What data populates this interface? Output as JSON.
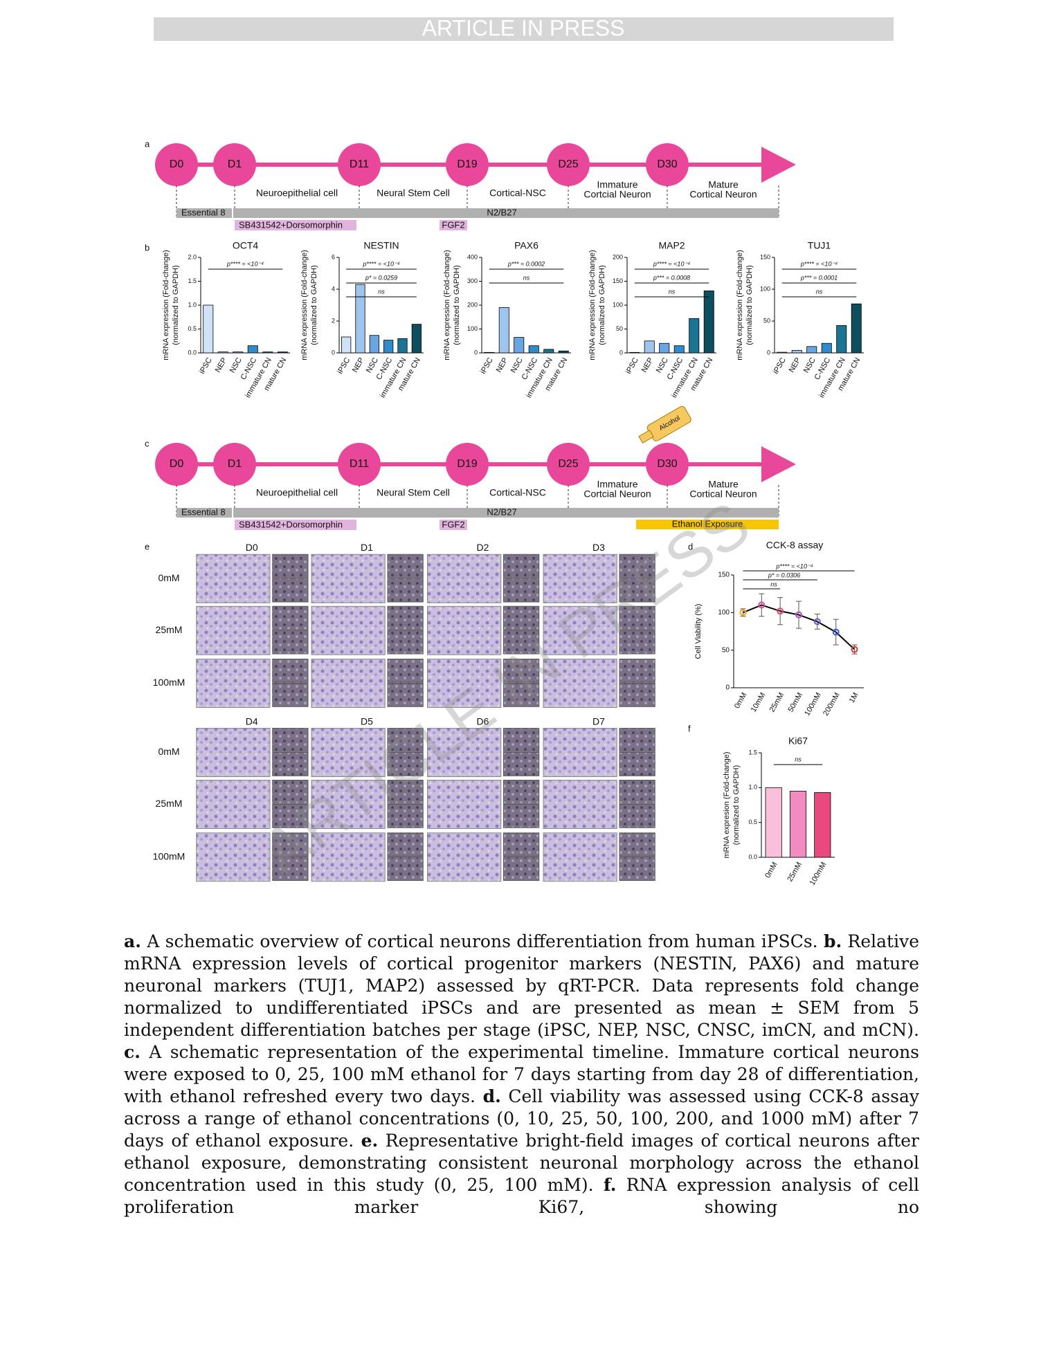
{
  "header": "ARTICLE IN PRESS",
  "watermark": "ARTICLE IN PRESS",
  "panel_a": {
    "letter": "a",
    "days": [
      "D0",
      "D1",
      "D11",
      "D19",
      "D25",
      "D30"
    ],
    "stages": [
      [
        "Neuroepithelial cell"
      ],
      [
        "Neural Stem Cell"
      ],
      [
        "Cortical-NSC"
      ],
      [
        "Immature",
        "Cortcial Neuron"
      ],
      [
        "Mature",
        "Cortical Neuron"
      ]
    ],
    "media": [
      "Essential 8",
      "N2/B27"
    ],
    "supplements": [
      "SB431542+Dorsomorphin",
      "FGF2"
    ]
  },
  "panel_b": {
    "letter": "b",
    "charts": [
      {
        "type": "bar",
        "title": "OCT4",
        "ylabel": [
          "mRNA expression (Fold-change)",
          "(normalized to GAPDH)"
        ],
        "categories": [
          "iPSC",
          "NEP",
          "NSC",
          "C-NSC",
          "immature CN",
          "mature CN"
        ],
        "values": [
          1.0,
          0.02,
          0.02,
          0.15,
          0.02,
          0.02
        ],
        "colors": [
          "#cfe2f7",
          "#9fc5ee",
          "#6aa5e3",
          "#2f8bc9",
          "#1a7494",
          "#0d4f5e"
        ],
        "ylim": [
          0,
          2
        ],
        "yticks": [
          {
            "value": 0,
            "label": "0.0"
          },
          0.5,
          {
            "value": 1,
            "label": "1.0"
          },
          1.5,
          {
            "value": 2,
            "label": "2.0"
          }
        ],
        "annotations": [
          "p**** = <10⁻⁴"
        ]
      },
      {
        "type": "bar",
        "title": "NESTIN",
        "ylabel": [
          "mRNA expression (Fold-change)",
          "(normalized to GAPDH)"
        ],
        "categories": [
          "iPSC",
          "NEP",
          "NSC",
          "C-NSC",
          "immature CN",
          "mature CN"
        ],
        "values": [
          1.0,
          4.3,
          1.1,
          0.8,
          0.9,
          1.8
        ],
        "colors": [
          "#cfe2f7",
          "#9fc5ee",
          "#6aa5e3",
          "#2f8bc9",
          "#1a7494",
          "#0d4f5e"
        ],
        "ylim": [
          0,
          6
        ],
        "yticks": [
          0,
          2,
          4,
          6
        ],
        "annotations": [
          "p**** = <10⁻⁴",
          "p* = 0.0259",
          "ns"
        ]
      },
      {
        "type": "bar",
        "title": "PAX6",
        "ylabel": [
          "mRNA expression (Fold-change)",
          "(normalized to GAPDH)"
        ],
        "categories": [
          "iPSC",
          "NEP",
          "NSC",
          "C-NSC",
          "immature CN",
          "mature CN"
        ],
        "values": [
          2,
          190,
          65,
          30,
          15,
          8
        ],
        "colors": [
          "#cfe2f7",
          "#9fc5ee",
          "#6aa5e3",
          "#2f8bc9",
          "#1a7494",
          "#0d4f5e"
        ],
        "ylim": [
          0,
          400
        ],
        "yticks": [
          0,
          100,
          200,
          300,
          400
        ],
        "annotations": [
          "p*** = 0.0002",
          "ns"
        ]
      },
      {
        "type": "bar",
        "title": "MAP2",
        "ylabel": [
          "mRNA expression (Fold-change)",
          "(normalized to GAPDH)"
        ],
        "categories": [
          "iPSC",
          "NEP",
          "NSC",
          "C-NSC",
          "immature CN",
          "mature CN"
        ],
        "values": [
          1,
          25,
          20,
          15,
          72,
          130
        ],
        "colors": [
          "#cfe2f7",
          "#9fc5ee",
          "#6aa5e3",
          "#2f8bc9",
          "#1a7494",
          "#0d4f5e"
        ],
        "ylim": [
          0,
          200
        ],
        "yticks": [
          0,
          50,
          100,
          150,
          200
        ],
        "annotations": [
          "p**** = <10⁻⁴",
          "p*** = 0.0008",
          "ns"
        ]
      },
      {
        "type": "bar",
        "title": "TUJ1",
        "ylabel": [
          "mRNA expression (Fold-change)",
          "(normalized to GAPDH)"
        ],
        "categories": [
          "iPSC",
          "NEP",
          "NSC",
          "C-NSC",
          "immature CN",
          "mature CN"
        ],
        "values": [
          1,
          4,
          10,
          15,
          43,
          77
        ],
        "colors": [
          "#cfe2f7",
          "#9fc5ee",
          "#6aa5e3",
          "#2f8bc9",
          "#1a7494",
          "#0d4f5e"
        ],
        "ylim": [
          0,
          150
        ],
        "yticks": [
          0,
          50,
          100,
          150
        ],
        "annotations": [
          "p**** = <10⁻⁴",
          "p*** = 0.0001",
          "ns"
        ]
      }
    ]
  },
  "panel_c": {
    "letter": "c",
    "days": [
      "D0",
      "D1",
      "D11",
      "D19",
      "D25",
      "D30"
    ],
    "stages": [
      [
        "Neuroepithelial cell"
      ],
      [
        "Neural Stem Cell"
      ],
      [
        "Cortical-NSC"
      ],
      [
        "Immature",
        "Cortcial Neuron"
      ],
      [
        "Mature",
        "Cortical Neuron"
      ]
    ],
    "media": [
      "Essential 8",
      "N2/B27"
    ],
    "supplements": [
      "SB431542+Dorsomorphin",
      "FGF2"
    ],
    "exposure": "Ethanol Exposure",
    "icon_label": "Alcohol"
  },
  "panel_e": {
    "letter": "e",
    "days_top": [
      "D0",
      "D1",
      "D2",
      "D3"
    ],
    "days_bottom": [
      "D4",
      "D5",
      "D6",
      "D7"
    ],
    "rows_top": [
      "0mM",
      "25mM",
      "100mM"
    ],
    "rows_bottom": [
      "0mM",
      "25mM",
      "100mM"
    ]
  },
  "panel_d": {
    "letter": "d",
    "chart": {
      "type": "line",
      "title": "CCK-8 assay",
      "ylabel": "Cell Viability (%)",
      "categories": [
        "0mM",
        "10mM",
        "25mM",
        "50mM",
        "100mM",
        "200mM",
        "1M"
      ],
      "values": [
        100,
        110,
        102,
        97,
        88,
        74,
        51
      ],
      "errors": [
        5,
        15,
        18,
        18,
        10,
        17,
        6
      ],
      "color": "#000000",
      "point_colors": [
        "#f5a623",
        "#e8479a",
        "#d94f6a",
        "#b24fc9",
        "#6a5acd",
        "#3b5bdb",
        "#e03131"
      ],
      "ylim": [
        0,
        150
      ],
      "yticks": [
        0,
        50,
        100,
        150
      ],
      "annotations": [
        "p**** = <10⁻⁴",
        "p* = 0.0306",
        "ns"
      ]
    }
  },
  "panel_f": {
    "letter": "f",
    "chart": {
      "type": "bar",
      "title": "Ki67",
      "ylabel": [
        "mRNA expresion (Fold-change)",
        "(normalized to GAPDH)"
      ],
      "categories": [
        "0mM",
        "25mM",
        "100mM"
      ],
      "values": [
        1.0,
        0.95,
        0.93
      ],
      "colors": [
        "#f9c0dc",
        "#f28cc0",
        "#e8497f"
      ],
      "ylim": [
        0,
        1.5
      ],
      "yticks": [
        {
          "value": 0,
          "label": "0.0"
        },
        0.5,
        {
          "value": 1,
          "label": "1.0"
        },
        1.5
      ],
      "annotations": [
        "ns"
      ]
    }
  },
  "caption": [
    "a.",
    " A schematic overview of cortical neurons differentiation from human iPSCs. ",
    "b.",
    " Relative mRNA expression levels of cortical progenitor markers (NESTIN, PAX6) and mature neuronal markers (TUJ1, MAP2) assessed by qRT-PCR. Data represents fold change normalized to undifferentiated iPSCs and are presented as mean ± SEM from 5 independent differentiation batches per stage (iPSC, NEP, NSC, CNSC, imCN, and mCN). ",
    "c.",
    " A schematic representation of the experimental timeline. Immature cortical neurons were exposed to 0, 25, 100 mM ethanol for 7 days starting from day 28 of differentiation, with ethanol refreshed every two days. ",
    "d.",
    " Cell viability was assessed using CCK-8 assay across a range of ethanol concentrations (0, 10, 25, 50, 100, 200, and 1000 mM) after 7 days of ethanol exposure. ",
    "e.",
    " Representative bright-field images of cortical neurons after ethanol exposure, demonstrating consistent neuronal morphology across the ethanol concentration used in this study (0, 25, 100 mM). ",
    "f.",
    " RNA expression analysis of cell proliferation marker Ki67, showing no"
  ]
}
